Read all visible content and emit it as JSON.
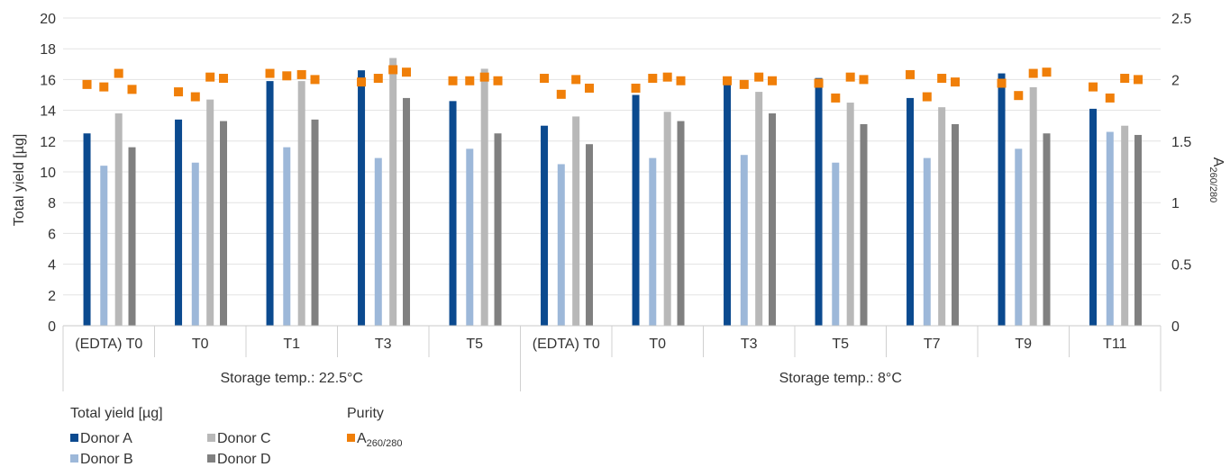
{
  "chart_data": {
    "type": "bar",
    "groups": [
      {
        "label": "Storage temp.: 22.5°C",
        "categories": [
          "(EDTA) T0",
          "T0",
          "T1",
          "T3",
          "T5"
        ]
      },
      {
        "label": "Storage temp.: 8°C",
        "categories": [
          "(EDTA) T0",
          "T0",
          "T3",
          "T5",
          "T7",
          "T9",
          "T11"
        ]
      }
    ],
    "ylabel": "Total yield [µg]",
    "ylabel_right_main": "A",
    "ylabel_right_sub": "260/280",
    "ylim": [
      0,
      20
    ],
    "yticks": [
      0,
      2,
      4,
      6,
      8,
      10,
      12,
      14,
      16,
      18,
      20
    ],
    "y2lim": [
      0,
      2.5
    ],
    "y2ticks": [
      0,
      0.5,
      1,
      1.5,
      2,
      2.5
    ],
    "y2ticklabels": [
      "0",
      "0.5",
      "1",
      "1.5",
      "2",
      "2.5"
    ],
    "grid": true,
    "legend_position": "bottom-left",
    "legend_titles": {
      "yield": "Total yield [µg]",
      "purity": "Purity"
    },
    "series": [
      {
        "name": "Donor A",
        "color": "#0b4a8f",
        "values": [
          12.5,
          13.4,
          15.9,
          16.6,
          14.6,
          13.0,
          15.0,
          15.8,
          16.1,
          14.8,
          16.4,
          14.1
        ]
      },
      {
        "name": "Donor B",
        "color": "#9db8d9",
        "values": [
          10.4,
          10.6,
          11.6,
          10.9,
          11.5,
          10.5,
          10.9,
          11.1,
          10.6,
          10.9,
          11.5,
          12.6
        ]
      },
      {
        "name": "Donor C",
        "color": "#b8b8b8",
        "values": [
          13.8,
          14.7,
          15.9,
          17.4,
          16.7,
          13.6,
          13.9,
          15.2,
          14.5,
          14.2,
          15.5,
          13.0
        ]
      },
      {
        "name": "Donor D",
        "color": "#808080",
        "values": [
          11.6,
          13.3,
          13.4,
          14.8,
          12.5,
          11.8,
          13.3,
          13.8,
          13.1,
          13.1,
          12.5,
          12.4
        ]
      }
    ],
    "purity": {
      "name_main": "A",
      "name_sub": "260/280",
      "color": "#f07f09",
      "values": [
        [
          1.96,
          1.94,
          2.05,
          1.92
        ],
        [
          1.9,
          1.86,
          2.02,
          2.01
        ],
        [
          2.05,
          2.03,
          2.04,
          2.0
        ],
        [
          1.98,
          2.01,
          2.08,
          2.06
        ],
        [
          1.99,
          1.99,
          2.02,
          1.99
        ],
        [
          2.01,
          1.88,
          2.0,
          1.93
        ],
        [
          1.93,
          2.01,
          2.02,
          1.99
        ],
        [
          1.99,
          1.96,
          2.02,
          1.99
        ],
        [
          1.97,
          1.85,
          2.02,
          2.0
        ],
        [
          2.04,
          1.86,
          2.01,
          1.98
        ],
        [
          1.97,
          1.87,
          2.05,
          2.06
        ],
        [
          1.94,
          1.85,
          2.01,
          2.0
        ]
      ]
    }
  }
}
